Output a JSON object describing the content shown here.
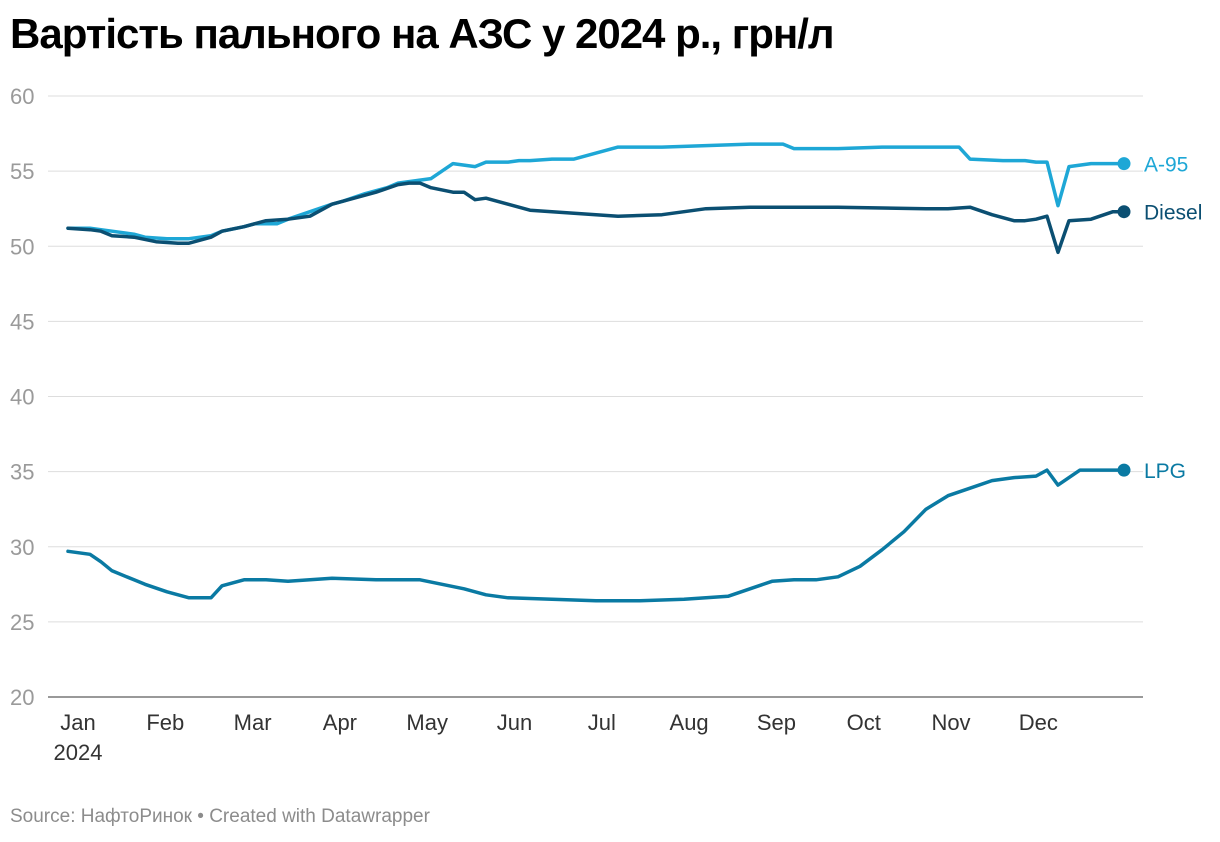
{
  "header": {
    "title": "Вартість пального на АЗС у 2024 р., грн/л"
  },
  "footer": {
    "source_label": "Source:",
    "source": "НафтоРинок",
    "separator": "•",
    "credit": "Created with Datawrapper"
  },
  "colors": {
    "a95": "#1ea7d6",
    "diesel": "#0b4f72",
    "lpg": "#0a7aa3",
    "grid": "#dddddd",
    "tick_text": "#9a9a9a"
  },
  "chart_data": {
    "type": "line",
    "title": "Вартість пального на АЗС у 2024 р., грн/л",
    "xlabel": "",
    "ylabel": "",
    "xlim": [
      2024.0,
      2024.96
    ],
    "ylim": [
      20,
      60
    ],
    "yticks": [
      20,
      25,
      30,
      35,
      40,
      45,
      50,
      55,
      60
    ],
    "xticks": [
      {
        "label": "Jan",
        "sub": "2024"
      },
      {
        "label": "Feb"
      },
      {
        "label": "Mar"
      },
      {
        "label": "Apr"
      },
      {
        "label": "May"
      },
      {
        "label": "Jun"
      },
      {
        "label": "Jul"
      },
      {
        "label": "Aug"
      },
      {
        "label": "Sep"
      },
      {
        "label": "Oct"
      },
      {
        "label": "Nov"
      },
      {
        "label": "Dec"
      }
    ],
    "grid": true,
    "legend": "inline-right",
    "series": [
      {
        "name": "A-95",
        "color": "#1ea7d6",
        "x": [
          2024.0,
          2024.02,
          2024.04,
          2024.06,
          2024.07,
          2024.09,
          2024.11,
          2024.13,
          2024.14,
          2024.16,
          2024.17,
          2024.19,
          2024.2,
          2024.22,
          2024.24,
          2024.25,
          2024.27,
          2024.29,
          2024.3,
          2024.32,
          2024.33,
          2024.34,
          2024.35,
          2024.37,
          2024.38,
          2024.4,
          2024.41,
          2024.42,
          2024.44,
          2024.46,
          2024.48,
          2024.5,
          2024.52,
          2024.54,
          2024.58,
          2024.62,
          2024.65,
          2024.66,
          2024.7,
          2024.74,
          2024.78,
          2024.8,
          2024.81,
          2024.82,
          2024.85,
          2024.87,
          2024.88,
          2024.89,
          2024.9,
          2024.91,
          2024.93,
          2024.96
        ],
        "values": [
          51.2,
          51.2,
          51.0,
          50.8,
          50.6,
          50.5,
          50.5,
          50.7,
          51.0,
          51.3,
          51.5,
          51.5,
          51.8,
          52.3,
          52.8,
          53.0,
          53.5,
          53.9,
          54.2,
          54.4,
          54.5,
          55.0,
          55.5,
          55.3,
          55.6,
          55.6,
          55.7,
          55.7,
          55.8,
          55.8,
          56.2,
          56.6,
          56.6,
          56.6,
          56.7,
          56.8,
          56.8,
          56.5,
          56.5,
          56.6,
          56.6,
          56.6,
          56.6,
          55.8,
          55.7,
          55.7,
          55.6,
          55.6,
          52.7,
          55.3,
          55.5,
          55.5
        ]
      },
      {
        "name": "Diesel",
        "color": "#0b4f72",
        "x": [
          2024.0,
          2024.02,
          2024.03,
          2024.04,
          2024.06,
          2024.08,
          2024.1,
          2024.11,
          2024.13,
          2024.14,
          2024.16,
          2024.18,
          2024.2,
          2024.22,
          2024.24,
          2024.26,
          2024.28,
          2024.3,
          2024.31,
          2024.32,
          2024.33,
          2024.35,
          2024.36,
          2024.37,
          2024.38,
          2024.4,
          2024.42,
          2024.46,
          2024.5,
          2024.54,
          2024.58,
          2024.62,
          2024.7,
          2024.78,
          2024.8,
          2024.82,
          2024.84,
          2024.86,
          2024.87,
          2024.88,
          2024.89,
          2024.9,
          2024.91,
          2024.93,
          2024.95,
          2024.96
        ],
        "values": [
          51.2,
          51.1,
          51.0,
          50.7,
          50.6,
          50.3,
          50.2,
          50.2,
          50.6,
          51.0,
          51.3,
          51.7,
          51.8,
          52.0,
          52.8,
          53.2,
          53.6,
          54.1,
          54.2,
          54.2,
          53.9,
          53.6,
          53.6,
          53.1,
          53.2,
          52.8,
          52.4,
          52.2,
          52.0,
          52.1,
          52.5,
          52.6,
          52.6,
          52.5,
          52.5,
          52.6,
          52.1,
          51.7,
          51.7,
          51.8,
          52.0,
          49.6,
          51.7,
          51.8,
          52.3,
          52.3
        ]
      },
      {
        "name": "LPG",
        "color": "#0a7aa3",
        "x": [
          2024.0,
          2024.02,
          2024.03,
          2024.04,
          2024.06,
          2024.07,
          2024.09,
          2024.11,
          2024.13,
          2024.14,
          2024.16,
          2024.18,
          2024.2,
          2024.24,
          2024.28,
          2024.32,
          2024.34,
          2024.36,
          2024.38,
          2024.4,
          2024.44,
          2024.48,
          2024.52,
          2024.56,
          2024.6,
          2024.62,
          2024.64,
          2024.66,
          2024.68,
          2024.7,
          2024.72,
          2024.74,
          2024.76,
          2024.78,
          2024.8,
          2024.82,
          2024.84,
          2024.86,
          2024.88,
          2024.89,
          2024.9,
          2024.92,
          2024.94,
          2024.96
        ],
        "values": [
          29.7,
          29.5,
          29.0,
          28.4,
          27.8,
          27.5,
          27.0,
          26.6,
          26.6,
          27.4,
          27.8,
          27.8,
          27.7,
          27.9,
          27.8,
          27.8,
          27.5,
          27.2,
          26.8,
          26.6,
          26.5,
          26.4,
          26.4,
          26.5,
          26.7,
          27.2,
          27.7,
          27.8,
          27.8,
          28.0,
          28.7,
          29.8,
          31.0,
          32.5,
          33.4,
          33.9,
          34.4,
          34.6,
          34.7,
          35.1,
          34.1,
          35.1,
          35.1,
          35.1
        ]
      }
    ]
  }
}
